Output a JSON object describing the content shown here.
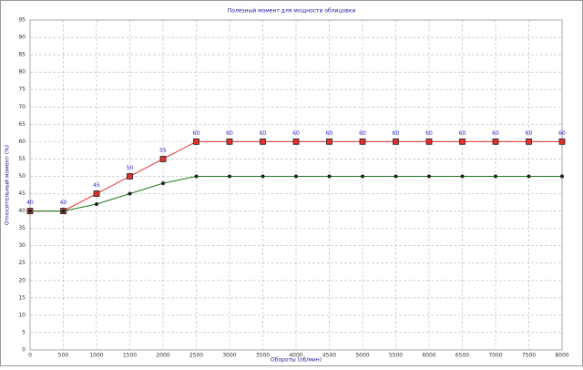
{
  "chart_data": {
    "type": "line",
    "title": "Полезный момент для мощности облицовки",
    "x_label": "Обороты (об/мин)",
    "y_label": "Относительный момент (%)",
    "x": [
      0,
      500,
      1000,
      1500,
      2000,
      2500,
      3000,
      3500,
      4000,
      4500,
      5000,
      5500,
      6000,
      6500,
      7000,
      7500,
      8000
    ],
    "series": [
      {
        "color": "#e03030",
        "values": [
          40,
          40,
          45,
          50,
          55,
          60,
          60,
          60,
          60,
          60,
          60,
          60,
          60,
          60,
          60,
          60,
          60
        ],
        "data_labels": true
      },
      {
        "color": "#1a7a1a",
        "values": [
          40,
          40,
          42,
          45,
          48,
          50,
          50,
          50,
          50,
          50,
          50,
          50,
          50,
          50,
          50,
          50,
          50
        ],
        "data_labels": false
      }
    ],
    "xlim": [
      0,
      8000
    ],
    "xticks": [
      0,
      500,
      1000,
      1500,
      2000,
      2500,
      3000,
      3500,
      4000,
      4500,
      5000,
      5500,
      6000,
      6500,
      7000,
      7500,
      8000
    ],
    "ylim": [
      0,
      95
    ],
    "yticks": [
      0,
      5,
      10,
      15,
      20,
      25,
      30,
      35,
      40,
      45,
      50,
      55,
      60,
      65,
      70,
      75,
      80,
      85,
      90,
      95
    ],
    "grid": true
  }
}
